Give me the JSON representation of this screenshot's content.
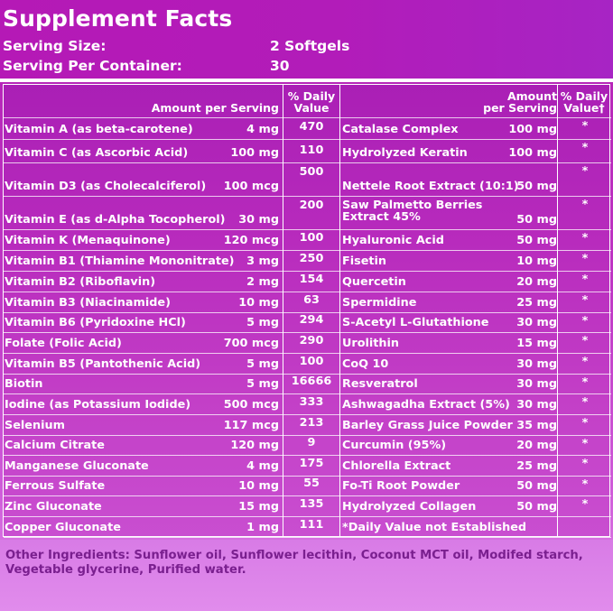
{
  "title": "Supplement Facts",
  "serving": {
    "size_label": "Serving Size:",
    "size_value": "2 Softgels",
    "per_container_label": "Serving Per Container:",
    "per_container_value": "30"
  },
  "table": {
    "left_headers": {
      "amount": "Amount per Serving",
      "dv_line1": "% Daily",
      "dv_line2": "Value"
    },
    "right_headers": {
      "amount_line1": "Amount",
      "amount_line2": "per Serving",
      "dv_line1": "% Daily",
      "dv_line2": "Value†"
    },
    "rows": [
      {
        "l_name": "Vitamin A (as beta-carotene)",
        "l_amt": "4 mg",
        "l_dv": "470",
        "r_name": "Catalase Complex",
        "r_amt": "100 mg",
        "r_dv": "*"
      },
      {
        "l_name": "Vitamin C (as Ascorbic Acid)",
        "l_amt": "100 mg",
        "l_dv": "110",
        "r_name": "Hydrolyzed Keratin",
        "r_amt": "100 mg",
        "r_dv": "*"
      },
      {
        "l_name": "Vitamin D3 (as Cholecalciferol)",
        "l_amt": "100 mcg",
        "l_dv": "500",
        "r_name": "Nettele Root Extract (10:1)",
        "r_amt": "50 mg",
        "r_dv": "*"
      },
      {
        "l_name": "Vitamin E (as d-Alpha Tocopherol)",
        "l_amt": "30 mg",
        "l_dv": "200",
        "r_name": "Saw Palmetto Berries",
        "r_name2": "Extract 45%",
        "r_amt": "50 mg",
        "r_dv": "*"
      },
      {
        "l_name": "Vitamin K (Menaquinone)",
        "l_amt": "120 mcg",
        "l_dv": "100",
        "r_name": "Hyaluronic Acid",
        "r_amt": "50 mg",
        "r_dv": "*"
      },
      {
        "l_name": "Vitamin B1 (Thiamine Mononitrate)",
        "l_amt": "3 mg",
        "l_dv": "250",
        "r_name": "Fisetin",
        "r_amt": "10 mg",
        "r_dv": "*"
      },
      {
        "l_name": "Vitamin B2 (Riboflavin)",
        "l_amt": "2 mg",
        "l_dv": "154",
        "r_name": "Quercetin",
        "r_amt": "20 mg",
        "r_dv": "*"
      },
      {
        "l_name": "Vitamin B3 (Niacinamide)",
        "l_amt": "10 mg",
        "l_dv": "63",
        "r_name": "Spermidine",
        "r_amt": "25 mg",
        "r_dv": "*"
      },
      {
        "l_name": "Vitamin B6 (Pyridoxine HCl)",
        "l_amt": "5 mg",
        "l_dv": "294",
        "r_name": "S-Acetyl L-Glutathione",
        "r_amt": "30 mg",
        "r_dv": "*"
      },
      {
        "l_name": "Folate (Folic Acid)",
        "l_amt": "700 mcg",
        "l_dv": "290",
        "r_name": "Urolithin",
        "r_amt": "15 mg",
        "r_dv": "*"
      },
      {
        "l_name": "Vitamin B5 (Pantothenic Acid)",
        "l_amt": "5 mg",
        "l_dv": "100",
        "r_name": "CoQ 10",
        "r_amt": "30 mg",
        "r_dv": "*"
      },
      {
        "l_name": "Biotin",
        "l_amt": "5 mg",
        "l_dv": "16666",
        "r_name": "Resveratrol",
        "r_amt": "30 mg",
        "r_dv": "*"
      },
      {
        "l_name": "Iodine (as Potassium Iodide)",
        "l_amt": "500 mcg",
        "l_dv": "333",
        "r_name": "Ashwagadha Extract (5%)",
        "r_amt": "30 mg",
        "r_dv": "*"
      },
      {
        "l_name": "Selenium",
        "l_amt": "117 mcg",
        "l_dv": "213",
        "r_name": "Barley Grass Juice Powder",
        "r_amt": "35 mg",
        "r_dv": "*"
      },
      {
        "l_name": "Calcium Citrate",
        "l_amt": "120 mg",
        "l_dv": "9",
        "r_name": "Curcumin (95%)",
        "r_amt": "20 mg",
        "r_dv": "*"
      },
      {
        "l_name": "Manganese Gluconate",
        "l_amt": "4 mg",
        "l_dv": "175",
        "r_name": "Chlorella Extract",
        "r_amt": "25 mg",
        "r_dv": "*"
      },
      {
        "l_name": "Ferrous Sulfate",
        "l_amt": "10 mg",
        "l_dv": "55",
        "r_name": "Fo-Ti Root Powder",
        "r_amt": "50 mg",
        "r_dv": "*"
      },
      {
        "l_name": "Zinc Gluconate",
        "l_amt": "15 mg",
        "l_dv": "135",
        "r_name": "Hydrolyzed Collagen",
        "r_amt": "50 mg",
        "r_dv": "*"
      },
      {
        "l_name": "Copper Gluconate",
        "l_amt": "1 mg",
        "l_dv": "111",
        "r_name": "*Daily Value not Established",
        "r_amt": "",
        "r_dv": ""
      }
    ]
  },
  "other_ingredients": "Other Ingredients: Sunflower oil, Sunflower lecithin, Coconut MCT oil, Modifed starch, Vegetable glycerine, Purified water."
}
